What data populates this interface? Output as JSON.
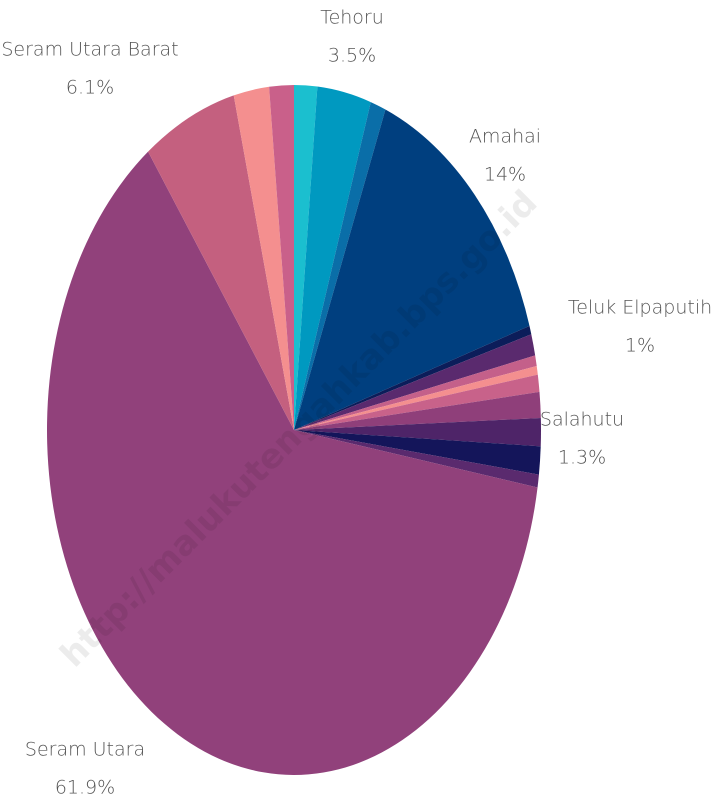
{
  "chart_data": {
    "type": "pie",
    "categories": [
      null,
      "Tehoru",
      null,
      "Amahai",
      null,
      "Teluk Elpaputih",
      null,
      null,
      null,
      null,
      "Salahutu",
      null,
      null,
      "Seram Utara",
      "Seram Utara Barat",
      null,
      null
    ],
    "values": [
      1.5,
      3.5,
      1.0,
      14,
      0.4,
      1,
      0.5,
      0.4,
      0.8,
      1.2,
      1.3,
      1.3,
      0.6,
      61.9,
      6.1,
      2.3,
      1.6
    ],
    "value_labels": [
      null,
      "3.5%",
      null,
      "14%",
      null,
      "1%",
      null,
      null,
      null,
      null,
      "1.3%",
      null,
      null,
      "61.9%",
      "6.1%",
      null,
      null
    ],
    "colors": [
      "#1bbfcf",
      "#0099c0",
      "#0a6ea8",
      "#003f7f",
      "#0c1d5a",
      "#5a2a6e",
      "#c4608a",
      "#f48f8f",
      "#c8628a",
      "#8f3f7a",
      "#4e2468",
      "#14155a",
      "#5a2a6e",
      "#91417b",
      "#c4607f",
      "#f48f8f",
      "#c9608a"
    ],
    "watermark": "http://malukutengahkab.bps.go.id"
  }
}
